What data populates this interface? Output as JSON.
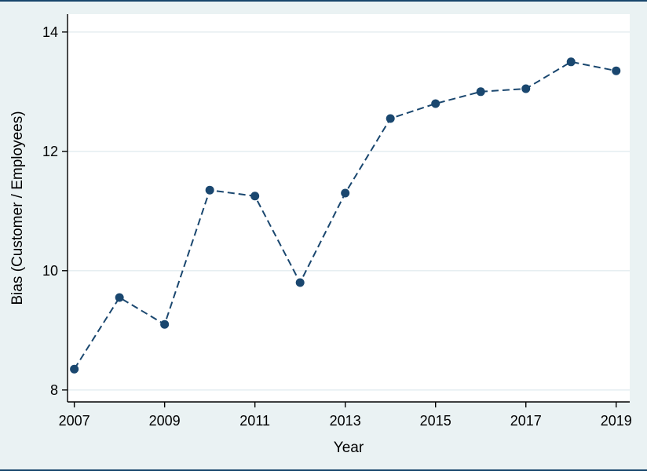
{
  "chart_data": {
    "type": "line",
    "title": "",
    "xlabel": "Year",
    "ylabel": "Bias (Customer / Employees)",
    "x": [
      2007,
      2008,
      2009,
      2010,
      2011,
      2012,
      2013,
      2014,
      2015,
      2016,
      2017,
      2018,
      2019
    ],
    "values": [
      8.35,
      9.55,
      9.1,
      11.35,
      11.25,
      9.8,
      11.3,
      12.55,
      12.8,
      13.0,
      13.05,
      13.5,
      13.35
    ],
    "xticks": [
      2007,
      2009,
      2011,
      2013,
      2015,
      2017,
      2019
    ],
    "yticks": [
      8,
      10,
      12,
      14
    ],
    "xlim": [
      2006.85,
      2019.3
    ],
    "ylim": [
      7.8,
      14.3
    ],
    "grid": true,
    "line_style": "dashed",
    "marker": "circle",
    "legend_position": "none",
    "colors": {
      "line": "#1a476f",
      "marker": "#1a476f",
      "figure_background": "#eaf2f3",
      "plot_background": "#ffffff",
      "grid": "#e2ebef",
      "axis": "#000000",
      "frame": "#17456b"
    }
  }
}
